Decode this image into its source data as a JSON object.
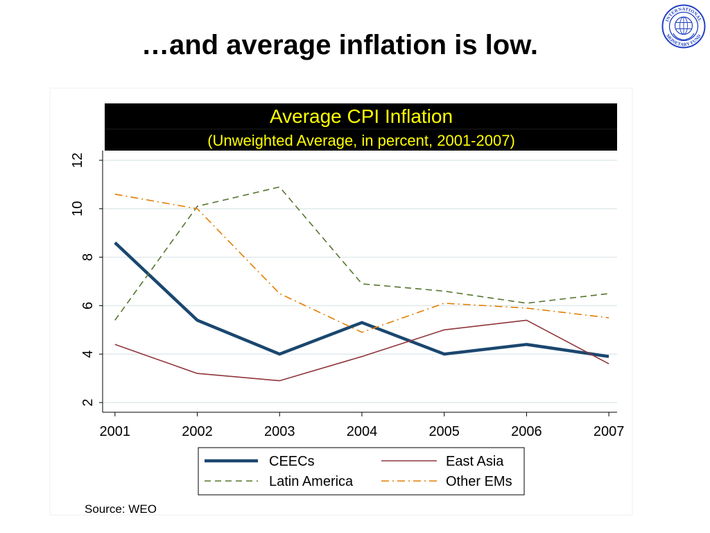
{
  "slide": {
    "title": "…and average inflation is low."
  },
  "logo": {
    "top_text": "INTERNATIONAL",
    "bottom_text": "MONETARY FUND",
    "color": "#1f3fc2"
  },
  "chart_data": {
    "type": "line",
    "title": "Average CPI Inflation",
    "subtitle": "(Unweighted Average, in percent, 2001-2007)",
    "header_background": "#000000",
    "header_text_color": "#ffff00",
    "xlabel": "",
    "ylabel": "",
    "x": [
      2001,
      2002,
      2003,
      2004,
      2005,
      2006,
      2007
    ],
    "xlim": [
      2000.85,
      2007.1
    ],
    "yticks": [
      2,
      4,
      6,
      8,
      10,
      12
    ],
    "ylim": [
      1.6,
      12.4
    ],
    "grid": true,
    "legend": "bottom",
    "series": [
      {
        "name": "CEECs",
        "color": "#1a476f",
        "style": "solid-thick",
        "values": [
          8.6,
          5.4,
          4.0,
          5.3,
          4.0,
          4.4,
          3.9
        ]
      },
      {
        "name": "East Asia",
        "color": "#90353b",
        "style": "solid",
        "values": [
          4.4,
          3.2,
          2.9,
          3.9,
          5.0,
          5.4,
          3.6
        ]
      },
      {
        "name": "Latin America",
        "color": "#55752f",
        "style": "dashed",
        "values": [
          5.4,
          10.1,
          10.9,
          6.9,
          6.6,
          6.1,
          6.5
        ]
      },
      {
        "name": "Other EMs",
        "color": "#e37e00",
        "style": "dash-dot",
        "values": [
          10.6,
          10.0,
          6.5,
          4.9,
          6.1,
          5.9,
          5.5
        ]
      }
    ],
    "source": "Source: WEO"
  }
}
